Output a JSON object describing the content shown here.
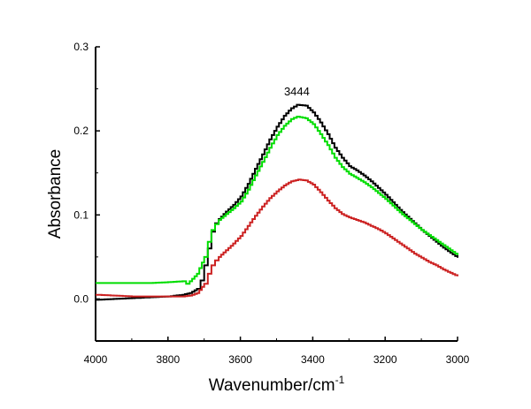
{
  "chart_data": {
    "type": "line",
    "title": "",
    "xlabel": "Wavenumber/cm",
    "xlabel_superscript": "-1",
    "ylabel": "Absorbance",
    "xlim": [
      4000,
      3000
    ],
    "ylim": [
      -0.05,
      0.3
    ],
    "x_reversed": true,
    "xticks": [
      4000,
      3800,
      3600,
      3400,
      3200,
      3000
    ],
    "xtick_labels": [
      "4000",
      "3800",
      "3600",
      "3400",
      "3200",
      "3000"
    ],
    "yticks": [
      0.0,
      0.1,
      0.2,
      0.3
    ],
    "ytick_labels": [
      "0.0",
      "0.1",
      "0.2",
      "0.3"
    ],
    "grid": false,
    "legend": "none",
    "annotations": [
      {
        "text": "3444",
        "x": 3444,
        "y": 0.242
      }
    ],
    "series": [
      {
        "color": "#000000",
        "x": [
          4000,
          3950,
          3900,
          3850,
          3800,
          3760,
          3740,
          3720,
          3710,
          3700,
          3690,
          3680,
          3670,
          3660,
          3640,
          3620,
          3600,
          3580,
          3560,
          3540,
          3520,
          3500,
          3480,
          3460,
          3444,
          3420,
          3400,
          3380,
          3360,
          3340,
          3320,
          3300,
          3280,
          3260,
          3240,
          3220,
          3200,
          3180,
          3160,
          3140,
          3120,
          3100,
          3080,
          3060,
          3040,
          3020,
          3000
        ],
        "y": [
          -0.001,
          0.0,
          0.001,
          0.002,
          0.003,
          0.005,
          0.007,
          0.012,
          0.022,
          0.04,
          0.06,
          0.08,
          0.09,
          0.095,
          0.104,
          0.112,
          0.122,
          0.137,
          0.155,
          0.172,
          0.19,
          0.205,
          0.218,
          0.227,
          0.231,
          0.23,
          0.222,
          0.21,
          0.196,
          0.18,
          0.168,
          0.158,
          0.153,
          0.147,
          0.14,
          0.132,
          0.124,
          0.115,
          0.106,
          0.098,
          0.09,
          0.082,
          0.075,
          0.068,
          0.061,
          0.055,
          0.049
        ]
      },
      {
        "color": "#00dd00",
        "x": [
          4000,
          3950,
          3900,
          3850,
          3800,
          3760,
          3750,
          3740,
          3720,
          3700,
          3690,
          3680,
          3670,
          3660,
          3640,
          3620,
          3600,
          3580,
          3560,
          3540,
          3520,
          3500,
          3480,
          3460,
          3444,
          3420,
          3400,
          3380,
          3360,
          3340,
          3320,
          3300,
          3280,
          3260,
          3240,
          3220,
          3200,
          3180,
          3160,
          3140,
          3120,
          3100,
          3080,
          3060,
          3040,
          3020,
          3000
        ],
        "y": [
          0.019,
          0.019,
          0.019,
          0.019,
          0.02,
          0.021,
          0.018,
          0.021,
          0.03,
          0.05,
          0.068,
          0.082,
          0.089,
          0.094,
          0.101,
          0.108,
          0.116,
          0.13,
          0.147,
          0.163,
          0.18,
          0.195,
          0.206,
          0.214,
          0.217,
          0.215,
          0.208,
          0.196,
          0.183,
          0.168,
          0.157,
          0.149,
          0.144,
          0.139,
          0.133,
          0.126,
          0.119,
          0.111,
          0.103,
          0.096,
          0.089,
          0.082,
          0.076,
          0.07,
          0.064,
          0.058,
          0.052
        ]
      },
      {
        "color": "#cc2222",
        "x": [
          4000,
          3950,
          3900,
          3850,
          3800,
          3760,
          3740,
          3720,
          3700,
          3690,
          3680,
          3670,
          3660,
          3640,
          3620,
          3600,
          3580,
          3560,
          3540,
          3520,
          3500,
          3480,
          3460,
          3440,
          3420,
          3400,
          3380,
          3360,
          3340,
          3320,
          3300,
          3280,
          3260,
          3240,
          3220,
          3200,
          3180,
          3160,
          3140,
          3120,
          3100,
          3080,
          3060,
          3040,
          3020,
          3000
        ],
        "y": [
          0.005,
          0.004,
          0.003,
          0.003,
          0.003,
          0.003,
          0.004,
          0.007,
          0.018,
          0.03,
          0.04,
          0.046,
          0.05,
          0.058,
          0.066,
          0.075,
          0.087,
          0.099,
          0.11,
          0.12,
          0.128,
          0.135,
          0.14,
          0.142,
          0.141,
          0.136,
          0.127,
          0.117,
          0.108,
          0.101,
          0.097,
          0.094,
          0.091,
          0.087,
          0.083,
          0.078,
          0.072,
          0.066,
          0.06,
          0.054,
          0.049,
          0.044,
          0.04,
          0.035,
          0.031,
          0.027
        ]
      }
    ]
  }
}
